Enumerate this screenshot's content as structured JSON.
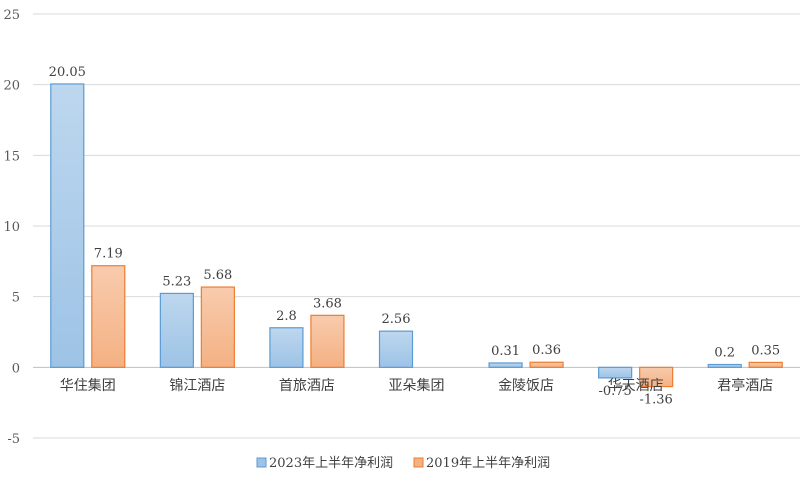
{
  "chart_data": {
    "type": "bar",
    "categories": [
      "华住集团",
      "锦江酒店",
      "首旅酒店",
      "亚朵集团",
      "金陵饭店",
      "华天酒店",
      "君亭酒店"
    ],
    "series": [
      {
        "name": "2023年上半年净利润",
        "values": [
          20.05,
          5.23,
          2.8,
          2.56,
          0.31,
          -0.75,
          0.2
        ],
        "labels": [
          "20.05",
          "5.23",
          "2.8",
          "2.56",
          "0.31",
          "-0.75",
          "0.2"
        ],
        "color": "#9DC3E6",
        "color_top": "#BDD7EE",
        "border": "#5B9BD5"
      },
      {
        "name": "2019年上半年净利润",
        "values": [
          7.19,
          5.68,
          3.68,
          null,
          0.36,
          -1.36,
          0.35
        ],
        "labels": [
          "7.19",
          "5.68",
          "3.68",
          "",
          "0.36",
          "-1.36",
          "0.35"
        ],
        "color": "#F4B183",
        "color_top": "#F8CBAD",
        "border": "#ED7D31"
      }
    ],
    "yticks": [
      -5,
      0,
      5,
      10,
      15,
      20,
      25
    ],
    "ylim": [
      -5,
      25
    ],
    "grid": true,
    "legend_position": "bottom"
  }
}
